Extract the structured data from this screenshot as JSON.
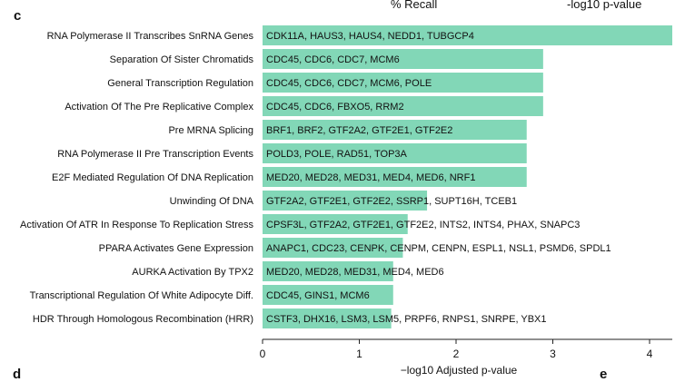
{
  "panel_labels": {
    "top_left": "c",
    "bottom_left": "d",
    "bottom_right": "e"
  },
  "header": {
    "recall_label": "% Recall",
    "pvalue_label": "-log10 p-value"
  },
  "colors": {
    "bar": "#82d7b7",
    "text": "#111111"
  },
  "chart_data": {
    "type": "bar",
    "orientation": "horizontal",
    "xlabel": "−log10 Adjusted p-value",
    "xlim": [
      0,
      4.2
    ],
    "xticks": [
      0,
      1,
      2,
      3,
      4
    ],
    "grid": false,
    "categories": [
      "RNA Polymerase II Transcribes SnRNA Genes",
      "Separation Of Sister Chromatids",
      "General Transcription Regulation",
      "Activation Of The Pre Replicative Complex",
      "Pre MRNA Splicing",
      "RNA Polymerase II Pre Transcription Events",
      "E2F Mediated Regulation Of DNA Replication",
      "Unwinding Of DNA",
      "Activation Of ATR In Response To Replication Stress",
      "PPARA Activates Gene Expression",
      "AURKA Activation By TPX2",
      "Transcriptional Regulation Of White Adipocyte Diff.",
      "HDR Through Homologous Recombination (HRR)"
    ],
    "values": [
      4.25,
      2.9,
      2.9,
      2.9,
      2.73,
      2.73,
      2.73,
      1.7,
      1.5,
      1.45,
      1.35,
      1.35,
      1.33
    ],
    "genes": [
      "CDK11A, HAUS3, HAUS4, NEDD1, TUBGCP4",
      "CDC45, CDC6, CDC7, MCM6",
      "CDC45, CDC6, CDC7, MCM6, POLE",
      "CDC45, CDC6, FBXO5, RRM2",
      "BRF1, BRF2, GTF2A2, GTF2E1, GTF2E2",
      "POLD3, POLE, RAD51, TOP3A",
      "MED20, MED28, MED31, MED4, MED6, NRF1",
      "GTF2A2, GTF2E1, GTF2E2, SSRP1, SUPT16H, TCEB1",
      "CPSF3L, GTF2A2, GTF2E1, GTF2E2, INTS2, INTS4, PHAX, SNAPC3",
      "ANAPC1, CDC23, CENPK, CENPM, CENPN, ESPL1, NSL1, PSMD6, SPDL1",
      "MED20, MED28, MED31, MED4, MED6",
      "CDC45, GINS1, MCM6",
      "CSTF3, DHX16, LSM3, LSM5, PRPF6, RNPS1, SNRPE, YBX1"
    ]
  }
}
